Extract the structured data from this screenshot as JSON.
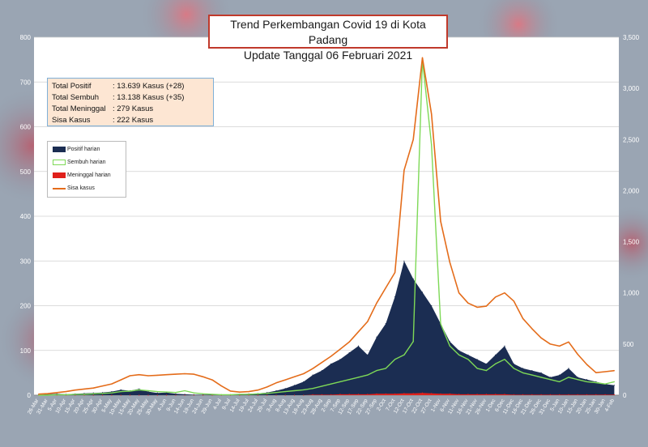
{
  "header": {
    "title_line1": "Trend Perkembangan Covid 19 di Kota Padang",
    "title_line2": "Update Tanggal  06 Februari 2021"
  },
  "summary": {
    "rows": [
      {
        "label": "Total Positif",
        "value": ": 13.639 Kasus (+28)"
      },
      {
        "label": "Total Sembuh",
        "value": ": 13.138 Kasus (+35)"
      },
      {
        "label": "Total Meninggal",
        "value": ":      279 Kasus"
      },
      {
        "label": "Sisa Kasus",
        "value": ":      222 Kasus"
      }
    ]
  },
  "colors": {
    "positif": "#1b2d52",
    "sembuh": "#7ed957",
    "meninggal": "#e0201b",
    "sisa": "#e46c1a"
  },
  "chart_data": {
    "type": "area",
    "categories": [
      "26-Mar",
      "31-Mar",
      "5-Apr",
      "10-Apr",
      "15-Apr",
      "20-Apr",
      "25-Apr",
      "30-Apr",
      "5-May",
      "10-May",
      "15-May",
      "20-May",
      "25-May",
      "30-May",
      "4-Jun",
      "9-Jun",
      "14-Jun",
      "19-Jun",
      "24-Jun",
      "29-Jun",
      "4-Jul",
      "9-Jul",
      "14-Jul",
      "19-Jul",
      "24-Jul",
      "29-Jul",
      "3-Aug",
      "8-Aug",
      "13-Aug",
      "18-Aug",
      "23-Aug",
      "28-Aug",
      "2-Sep",
      "7-Sep",
      "12-Sep",
      "17-Sep",
      "22-Sep",
      "27-Sep",
      "2-Oct",
      "7-Oct",
      "12-Oct",
      "17-Oct",
      "22-Oct",
      "27-Oct",
      "1-Nov",
      "6-Nov",
      "11-Nov",
      "16-Nov",
      "21-Nov",
      "26-Nov",
      "1-Dec",
      "6-Dec",
      "11-Dec",
      "16-Dec",
      "21-Dec",
      "26-Dec",
      "31-Dec",
      "5-Jan",
      "10-Jan",
      "15-Jan",
      "20-Jan",
      "25-Jan",
      "30-Jan",
      "4-Feb"
    ],
    "y_left": {
      "min": 0,
      "max": 800,
      "ticks": [
        0,
        100,
        200,
        300,
        400,
        500,
        600,
        700,
        800
      ]
    },
    "y_right": {
      "min": 0,
      "max": 3500,
      "ticks": [
        "0",
        "500",
        "1,000",
        "1,500",
        "2,000",
        "2,500",
        "3,000",
        "3,500"
      ]
    },
    "grid": true,
    "legend_position": "top-left",
    "series": [
      {
        "name": "Positif harian",
        "axis": "left",
        "style": "area",
        "color": "#1b2d52",
        "values": [
          1,
          2,
          3,
          2,
          3,
          4,
          5,
          6,
          8,
          12,
          10,
          14,
          8,
          5,
          6,
          3,
          2,
          1,
          1,
          1,
          1,
          1,
          2,
          3,
          4,
          6,
          10,
          15,
          22,
          30,
          45,
          55,
          70,
          80,
          95,
          110,
          90,
          130,
          160,
          220,
          300,
          260,
          230,
          200,
          160,
          120,
          100,
          90,
          80,
          70,
          90,
          110,
          70,
          60,
          55,
          50,
          40,
          45,
          60,
          40,
          35,
          30,
          25,
          22
        ]
      },
      {
        "name": "Sembuh harian",
        "axis": "left",
        "style": "line",
        "color": "#7ed957",
        "values": [
          0,
          0,
          1,
          1,
          2,
          2,
          3,
          4,
          5,
          8,
          9,
          12,
          10,
          8,
          7,
          6,
          10,
          5,
          3,
          2,
          1,
          1,
          2,
          2,
          3,
          4,
          6,
          8,
          10,
          12,
          15,
          20,
          25,
          30,
          35,
          40,
          45,
          55,
          60,
          80,
          90,
          120,
          750,
          560,
          160,
          110,
          90,
          80,
          60,
          55,
          70,
          80,
          60,
          50,
          45,
          40,
          35,
          30,
          40,
          35,
          30,
          28,
          25,
          30
        ]
      },
      {
        "name": "Meninggal harian",
        "axis": "left",
        "style": "area",
        "color": "#e0201b",
        "values": [
          0,
          0,
          0,
          0,
          0,
          0,
          0,
          0,
          0,
          0,
          0,
          0,
          0,
          0,
          0,
          0,
          0,
          0,
          0,
          0,
          0,
          0,
          0,
          0,
          0,
          0,
          0,
          0,
          0,
          0,
          1,
          1,
          1,
          2,
          2,
          2,
          2,
          3,
          3,
          3,
          4,
          4,
          5,
          4,
          3,
          3,
          2,
          2,
          2,
          2,
          2,
          2,
          1,
          1,
          1,
          1,
          1,
          1,
          1,
          1,
          1,
          1,
          1,
          1
        ]
      },
      {
        "name": "Sisa kasus",
        "axis": "right",
        "style": "line",
        "color": "#e46c1a",
        "values": [
          10,
          15,
          25,
          35,
          50,
          60,
          70,
          90,
          110,
          150,
          190,
          200,
          190,
          195,
          200,
          205,
          210,
          205,
          180,
          150,
          90,
          40,
          30,
          35,
          50,
          80,
          120,
          150,
          180,
          210,
          260,
          320,
          380,
          450,
          520,
          620,
          720,
          900,
          1050,
          1200,
          2200,
          2500,
          3300,
          2750,
          1700,
          1300,
          1000,
          900,
          860,
          870,
          960,
          1000,
          920,
          750,
          650,
          560,
          500,
          480,
          520,
          400,
          300,
          220,
          230,
          240
        ]
      }
    ]
  }
}
